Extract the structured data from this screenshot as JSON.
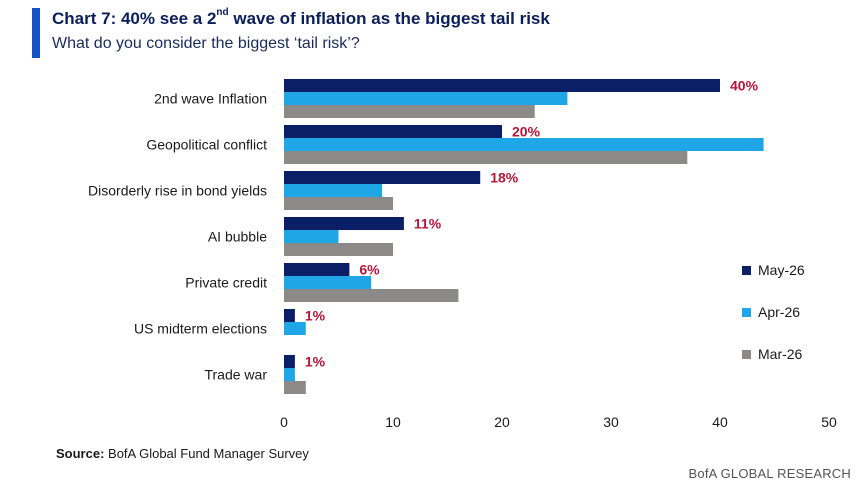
{
  "header": {
    "title_main": "Chart 7: 40% see a 2",
    "title_sup": "nd",
    "title_rest": " wave of inflation as the biggest tail risk",
    "subtitle": "What do you consider the biggest ‘tail risk’?"
  },
  "footer": {
    "source_label": "Source:",
    "source_text": " BofA Global Fund Manager Survey",
    "brand": "BofA GLOBAL RESEARCH"
  },
  "colors": {
    "accent": "#1452c8",
    "may": "#0a1f66",
    "apr": "#1ea6e6",
    "mar": "#8c8989",
    "label_red": "#b3173a"
  },
  "chart_data": {
    "type": "bar",
    "orientation": "horizontal",
    "categories": [
      "2nd wave Inflation",
      "Geopolitical conflict",
      "Disorderly rise in bond yields",
      "AI bubble",
      "Private credit",
      "US midterm elections",
      "Trade war"
    ],
    "series": [
      {
        "name": "May-26",
        "values": [
          40,
          20,
          18,
          11,
          6,
          1,
          1
        ]
      },
      {
        "name": "Apr-26",
        "values": [
          26,
          44,
          9,
          5,
          8,
          2,
          1
        ]
      },
      {
        "name": "Mar-26",
        "values": [
          23,
          37,
          10,
          10,
          16,
          0,
          2
        ]
      }
    ],
    "data_labels": [
      "40%",
      "20%",
      "18%",
      "11%",
      "6%",
      "1%",
      "1%"
    ],
    "xlim": [
      0,
      50
    ],
    "xticks": [
      0,
      10,
      20,
      30,
      40,
      50
    ],
    "grid": false,
    "legend_position": "right"
  }
}
